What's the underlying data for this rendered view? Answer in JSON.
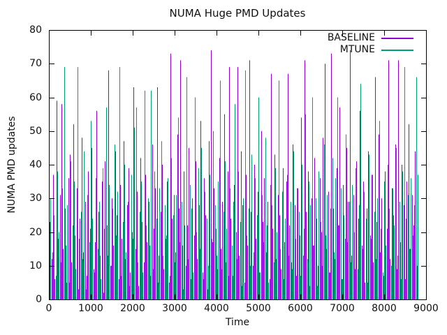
{
  "title": "NUMA Huge PMD Updates",
  "colors": {
    "background": "#ffffff",
    "axis": "#000000",
    "text": "#111111"
  },
  "legend": {
    "position": "top-right",
    "entries": [
      {
        "label": "BASELINE",
        "color": "#9400d3"
      },
      {
        "label": "MTUNE",
        "color": "#009e73"
      }
    ]
  },
  "chart_data": {
    "type": "bar",
    "style": "impulses",
    "title": "NUMA Huge PMD Updates",
    "xlabel": "Time",
    "ylabel": "NUMA PMD updates",
    "xlim": [
      0,
      9000
    ],
    "ylim": [
      0,
      80
    ],
    "x_ticks": [
      0,
      1000,
      2000,
      3000,
      4000,
      5000,
      6000,
      7000,
      8000,
      9000
    ],
    "y_ticks": [
      0,
      10,
      20,
      30,
      40,
      50,
      60,
      70,
      80
    ],
    "grid": false,
    "legend_position": "top-right",
    "series": [
      {
        "name": "BASELINE",
        "color": "#9400d3",
        "x_start": 20,
        "x_step": 40,
        "values": [
          23,
          12,
          37,
          6,
          59,
          18,
          31,
          58,
          15,
          27,
          5,
          36,
          43,
          11,
          52,
          19,
          33,
          3,
          24,
          48,
          14,
          29,
          7,
          38,
          21,
          45,
          9,
          17,
          56,
          26,
          13,
          35,
          2,
          41,
          22,
          68,
          10,
          30,
          16,
          44,
          25,
          6,
          34,
          18,
          47,
          12,
          28,
          39,
          8,
          20,
          63,
          15,
          32,
          4,
          42,
          23,
          11,
          37,
          17,
          29,
          7,
          46,
          21,
          33,
          63,
          13,
          26,
          40,
          9,
          18,
          35,
          5,
          73,
          24,
          31,
          14,
          49,
          27,
          71,
          16,
          38,
          10,
          22,
          45,
          6,
          30,
          19,
          41,
          12,
          28,
          53,
          8,
          36,
          25,
          3,
          47,
          74,
          17,
          33,
          21,
          9,
          42,
          15,
          29,
          55,
          11,
          38,
          69,
          24,
          7,
          34,
          20,
          69,
          13,
          44,
          28,
          5,
          37,
          16,
          71,
          26,
          10,
          40,
          18,
          32,
          8,
          50,
          23,
          36,
          14,
          29,
          6,
          67,
          21,
          43,
          12,
          31,
          25,
          9,
          39,
          17,
          35,
          67,
          22,
          11,
          46,
          28,
          7,
          33,
          19,
          54,
          13,
          71,
          26,
          38,
          4,
          30,
          16,
          42,
          24,
          10,
          36,
          20,
          48,
          70,
          15,
          32,
          8,
          73,
          27,
          12,
          39,
          22,
          57,
          6,
          34,
          18,
          45,
          29,
          74,
          13,
          31,
          9,
          41,
          24,
          56,
          16,
          35,
          5,
          27,
          44,
          19,
          37,
          11,
          66,
          23,
          49,
          14,
          30,
          7,
          38,
          21,
          71,
          12,
          33,
          25,
          46,
          9,
          71,
          17,
          40,
          28,
          6,
          35,
          52,
          15,
          31,
          22,
          44,
          10
        ]
      },
      {
        "name": "MTUNE",
        "color": "#009e73",
        "x_start": 40,
        "x_step": 40,
        "values": [
          30,
          14,
          25,
          7,
          38,
          20,
          11,
          33,
          69,
          16,
          28,
          5,
          41,
          22,
          35,
          9,
          69,
          18,
          26,
          12,
          44,
          3,
          31,
          17,
          53,
          24,
          8,
          36,
          15,
          29,
          6,
          39,
          21,
          57,
          13,
          34,
          10,
          27,
          46,
          19,
          32,
          69,
          7,
          23,
          40,
          14,
          29,
          4,
          37,
          18,
          51,
          57,
          11,
          26,
          35,
          8,
          62,
          22,
          30,
          16,
          62,
          9,
          38,
          24,
          5,
          33,
          47,
          13,
          28,
          19,
          36,
          7,
          42,
          25,
          11,
          31,
          54,
          17,
          29,
          3,
          22,
          66,
          12,
          34,
          27,
          8,
          60,
          20,
          39,
          15,
          45,
          6,
          32,
          24,
          10,
          37,
          18,
          50,
          28,
          13,
          35,
          65,
          9,
          26,
          41,
          21,
          7,
          33,
          16,
          29,
          58,
          12,
          38,
          23,
          4,
          30,
          68,
          19,
          27,
          10,
          43,
          14,
          36,
          25,
          60,
          8,
          31,
          17,
          48,
          22,
          5,
          34,
          28,
          11,
          39,
          20,
          65,
          15,
          32,
          6,
          24,
          37,
          13,
          29,
          9,
          44,
          18,
          33,
          26,
          7,
          40,
          21,
          55,
          12,
          35,
          28,
          60,
          16,
          30,
          4,
          38,
          23,
          10,
          46,
          19,
          31,
          8,
          27,
          42,
          14,
          36,
          60,
          22,
          33,
          6,
          25,
          49,
          17,
          29,
          11,
          34,
          20,
          39,
          9,
          28,
          64,
          15,
          32,
          24,
          5,
          43,
          18,
          37,
          26,
          12,
          30,
          53,
          21,
          8,
          35,
          16,
          40,
          27,
          10,
          33,
          22,
          45,
          13,
          29,
          6,
          38,
          69,
          24,
          31,
          15,
          36,
          19,
          28,
          66,
          37
        ]
      }
    ]
  }
}
